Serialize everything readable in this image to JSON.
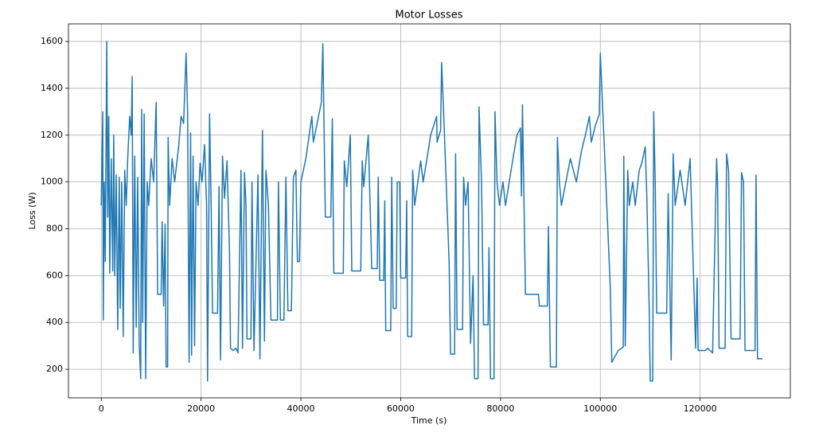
{
  "chart_data": {
    "type": "line",
    "title": "Motor Losses",
    "x_label": "Time (s)",
    "y_label": "Loss (W)",
    "color": "#1f77b4",
    "grid": true,
    "x": [
      0,
      300,
      400,
      600,
      800,
      1000,
      1100,
      1300,
      1500,
      1700,
      2000,
      2300,
      2500,
      2700,
      3000,
      3300,
      3600,
      3800,
      4100,
      4400,
      4700,
      5000,
      5300,
      5700,
      6000,
      6200,
      6400,
      6700,
      7000,
      7300,
      7600,
      7900,
      8100,
      8300,
      8600,
      8900,
      9200,
      9500,
      10000,
      10500,
      11000,
      11300,
      12000,
      12200,
      12500,
      12800,
      13000,
      13300,
      13400,
      13700,
      14200,
      14700,
      15500,
      16000,
      16500,
      17000,
      17300,
      17600,
      17900,
      18100,
      18400,
      18700,
      19000,
      19400,
      19800,
      20200,
      20700,
      21100,
      21300,
      21700,
      22000,
      22300,
      23300,
      23600,
      23900,
      24300,
      24700,
      25200,
      25700,
      25900,
      26400,
      27000,
      27400,
      28000,
      28300,
      28700,
      29000,
      29200,
      30000,
      30200,
      30600,
      31400,
      31800,
      32300,
      32700,
      33000,
      33500,
      34000,
      35300,
      35500,
      35900,
      36600,
      37000,
      37400,
      38100,
      38500,
      39000,
      39300,
      39700,
      40000,
      41000,
      42200,
      42500,
      44100,
      44400,
      44900,
      46000,
      46300,
      46600,
      48500,
      48700,
      49200,
      49900,
      50200,
      52000,
      52300,
      52600,
      53500,
      54200,
      55300,
      55500,
      55800,
      56600,
      56800,
      57000,
      58000,
      58200,
      58500,
      59100,
      59300,
      59800,
      60000,
      61000,
      61200,
      61400,
      62200,
      62400,
      62800,
      64000,
      64500,
      65500,
      66000,
      67200,
      67300,
      67700,
      68000,
      68200,
      68600,
      69700,
      70000,
      70800,
      71000,
      71300,
      72400,
      72600,
      73000,
      73500,
      74000,
      74500,
      74800,
      75500,
      75700,
      76200,
      76600,
      77500,
      77700,
      78000,
      78700,
      78900,
      79300,
      79800,
      80500,
      81000,
      82500,
      83300,
      84000,
      84200,
      84400,
      85000,
      87600,
      87800,
      89400,
      89600,
      90000,
      91200,
      91400,
      91800,
      92200,
      94000,
      95200,
      96200,
      97000,
      97800,
      98200,
      99000,
      99800,
      100000,
      102000,
      102300,
      102800,
      103600,
      104600,
      104700,
      105000,
      105500,
      105800,
      106500,
      107000,
      107800,
      108300,
      109000,
      109300,
      109800,
      110000,
      110500,
      110700,
      111000,
      111300,
      113300,
      113600,
      114200,
      114600,
      115000,
      116000,
      117000,
      118000,
      119100,
      119400,
      119600,
      121000,
      121500,
      122500,
      123300,
      123500,
      123800,
      125000,
      125300,
      125700,
      126200,
      128000,
      128300,
      128700,
      129000,
      131000,
      131200,
      131500,
      132500
    ],
    "values": [
      900,
      1300,
      410,
      1000,
      660,
      1280,
      1600,
      850,
      1280,
      610,
      1100,
      620,
      1200,
      600,
      1030,
      370,
      1020,
      460,
      1000,
      340,
      1050,
      900,
      1100,
      1280,
      1200,
      1450,
      270,
      1110,
      380,
      1020,
      310,
      160,
      1310,
      400,
      1290,
      160,
      1000,
      900,
      1100,
      1000,
      1340,
      520,
      520,
      830,
      470,
      820,
      210,
      210,
      1190,
      900,
      1100,
      1000,
      1150,
      1280,
      1250,
      1550,
      1300,
      230,
      1210,
      260,
      1110,
      300,
      1000,
      900,
      1080,
      1000,
      1160,
      900,
      150,
      1290,
      930,
      440,
      440,
      980,
      240,
      1110,
      930,
      1090,
      700,
      290,
      280,
      290,
      270,
      1050,
      290,
      1040,
      900,
      330,
      330,
      1000,
      280,
      1030,
      245,
      1220,
      320,
      1050,
      900,
      410,
      410,
      1000,
      410,
      410,
      1020,
      450,
      450,
      1020,
      1050,
      660,
      660,
      1000,
      1100,
      1280,
      1170,
      1340,
      1590,
      850,
      850,
      1270,
      610,
      610,
      1090,
      980,
      1200,
      620,
      620,
      1090,
      980,
      1200,
      630,
      630,
      1020,
      580,
      580,
      920,
      365,
      365,
      1020,
      460,
      460,
      1000,
      1000,
      590,
      590,
      920,
      340,
      340,
      1050,
      900,
      1090,
      1000,
      1130,
      1200,
      1280,
      1170,
      1200,
      1220,
      1510,
      1300,
      660,
      265,
      265,
      1120,
      370,
      370,
      1020,
      900,
      1000,
      310,
      600,
      160,
      160,
      1320,
      1000,
      390,
      390,
      720,
      160,
      160,
      1300,
      1000,
      900,
      1000,
      900,
      1100,
      1200,
      1230,
      940,
      1330,
      520,
      520,
      470,
      470,
      810,
      210,
      210,
      1190,
      1000,
      900,
      1100,
      1000,
      1130,
      1200,
      1280,
      1170,
      1240,
      1290,
      1550,
      550,
      230,
      250,
      280,
      295,
      1110,
      300,
      1050,
      900,
      1000,
      900,
      1050,
      1080,
      1150,
      950,
      460,
      150,
      150,
      1300,
      1000,
      440,
      440,
      950,
      240,
      1120,
      900,
      1050,
      900,
      1100,
      290,
      590,
      280,
      280,
      290,
      270,
      1100,
      990,
      290,
      290,
      1120,
      1050,
      330,
      330,
      1040,
      1000,
      280,
      280,
      1030,
      245,
      245
    ],
    "xlim": [
      -6575,
      138075
    ],
    "ylim": [
      78,
      1675
    ],
    "xticks": [
      0,
      20000,
      40000,
      60000,
      80000,
      100000,
      120000
    ],
    "yticks": [
      200,
      400,
      600,
      800,
      1000,
      1200,
      1400,
      1600
    ]
  }
}
